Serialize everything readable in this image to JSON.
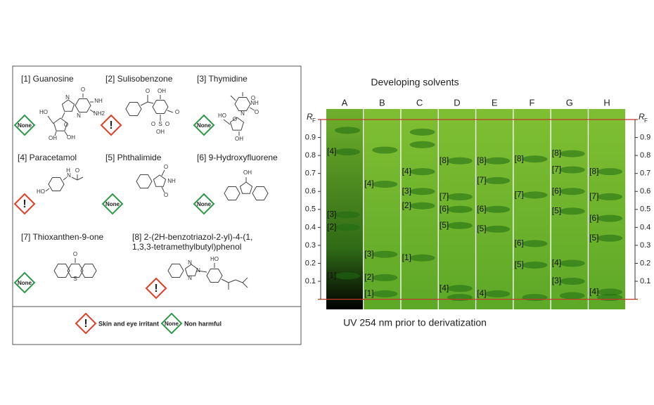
{
  "compounds": [
    {
      "name": "[1]  Guanosine",
      "hazard": "None",
      "atoms": [
        "O",
        "NH",
        "NH2",
        "N",
        "N",
        "HO",
        "O",
        "OH",
        "OH"
      ]
    },
    {
      "name": "[2]  Sulisobenzone",
      "hazard": "!",
      "atoms": [
        "O",
        "OH",
        "O",
        "S",
        "O",
        "O",
        "OH"
      ]
    },
    {
      "name": "[3]  Thymidine",
      "hazard": "None",
      "atoms": [
        "O",
        "NH",
        "O",
        "N",
        "HO",
        "O",
        "OH"
      ]
    },
    {
      "name": "[4]  Paracetamol",
      "hazard": "!",
      "atoms": [
        "H",
        "N",
        "O",
        "HO"
      ]
    },
    {
      "name": "[5]  Phthalimide",
      "hazard": "None",
      "atoms": [
        "O",
        "NH",
        "O"
      ]
    },
    {
      "name": "[6]  9-Hydroxyfluorene",
      "hazard": "None",
      "atoms": [
        "OH"
      ]
    },
    {
      "name": "[7]  Thioxanthen-9-one",
      "hazard": "None",
      "atoms": [
        "O",
        "S"
      ]
    },
    {
      "name": "[8]  2-(2H-benzotriazol-2-yl)-4-(1,",
      "name2": "1,3,3-tetramethylbutyl)phenol",
      "hazard": "!",
      "atoms": [
        "N",
        "N",
        "N",
        "HO"
      ]
    }
  ],
  "legend": {
    "irritant_icon": "!",
    "irritant": "Skin and eye irritant",
    "harmless_icon": "None",
    "harmless": "Non harmful"
  },
  "tlc": {
    "title": "Developing solvents",
    "caption": "UV 254 nm prior to derivatization",
    "axis_label": "R",
    "axis_sub": "F",
    "ylim": [
      0,
      1
    ],
    "ticks": [
      0.1,
      0.2,
      0.3,
      0.4,
      0.5,
      0.6,
      0.7,
      0.8,
      0.9
    ],
    "lanes": [
      {
        "name": "A",
        "bands": [
          {
            "rf": 0.94
          },
          {
            "label": "[4]",
            "rf": 0.82
          },
          {
            "label": "[3]",
            "rf": 0.47
          },
          {
            "label": "[2]",
            "rf": 0.4
          },
          {
            "label": "[1]",
            "rf": 0.13
          }
        ]
      },
      {
        "name": "B",
        "bands": [
          {
            "rf": 0.83
          },
          {
            "label": "[4]",
            "rf": 0.64
          },
          {
            "label": "[3]",
            "rf": 0.25
          },
          {
            "label": "[2]",
            "rf": 0.12
          },
          {
            "label": "[1]",
            "rf": 0.03
          }
        ]
      },
      {
        "name": "C",
        "bands": [
          {
            "rf": 0.93
          },
          {
            "rf": 0.86
          },
          {
            "label": "[4]",
            "rf": 0.71
          },
          {
            "label": "[3]",
            "rf": 0.6
          },
          {
            "label": "[2]",
            "rf": 0.52
          },
          {
            "label": "[1]",
            "rf": 0.23
          }
        ]
      },
      {
        "name": "D",
        "bands": [
          {
            "label": "[8]",
            "rf": 0.77
          },
          {
            "label": "[7]",
            "rf": 0.57
          },
          {
            "label": "[6]",
            "rf": 0.5
          },
          {
            "label": "[5]",
            "rf": 0.41
          },
          {
            "label": "[4]",
            "rf": 0.06
          },
          {
            "rf": 0.01
          }
        ]
      },
      {
        "name": "E",
        "bands": [
          {
            "label": "[8]",
            "rf": 0.77
          },
          {
            "label": "[7]",
            "rf": 0.66
          },
          {
            "label": "[6]",
            "rf": 0.5
          },
          {
            "label": "[5]",
            "rf": 0.39
          },
          {
            "label": "[4]",
            "rf": 0.03
          }
        ]
      },
      {
        "name": "F",
        "bands": [
          {
            "label": "[8]",
            "rf": 0.78
          },
          {
            "label": "[7]",
            "rf": 0.58
          },
          {
            "label": "[6]",
            "rf": 0.31
          },
          {
            "label": "[5]",
            "rf": 0.19
          },
          {
            "rf": 0.01
          }
        ]
      },
      {
        "name": "G",
        "bands": [
          {
            "label": "[8]",
            "rf": 0.81
          },
          {
            "label": "[7]",
            "rf": 0.72
          },
          {
            "label": "[6]",
            "rf": 0.6
          },
          {
            "label": "[5]",
            "rf": 0.49
          },
          {
            "label": "[4]",
            "rf": 0.2
          },
          {
            "label": "[3]",
            "rf": 0.1
          },
          {
            "rf": 0.02
          }
        ]
      },
      {
        "name": "H",
        "bands": [
          {
            "label": "[8]",
            "rf": 0.71
          },
          {
            "label": "[7]",
            "rf": 0.57
          },
          {
            "label": "[6]",
            "rf": 0.45
          },
          {
            "label": "[5]",
            "rf": 0.34
          },
          {
            "label": "[4]",
            "rf": 0.04
          },
          {
            "rf": 0.01
          }
        ]
      }
    ]
  }
}
